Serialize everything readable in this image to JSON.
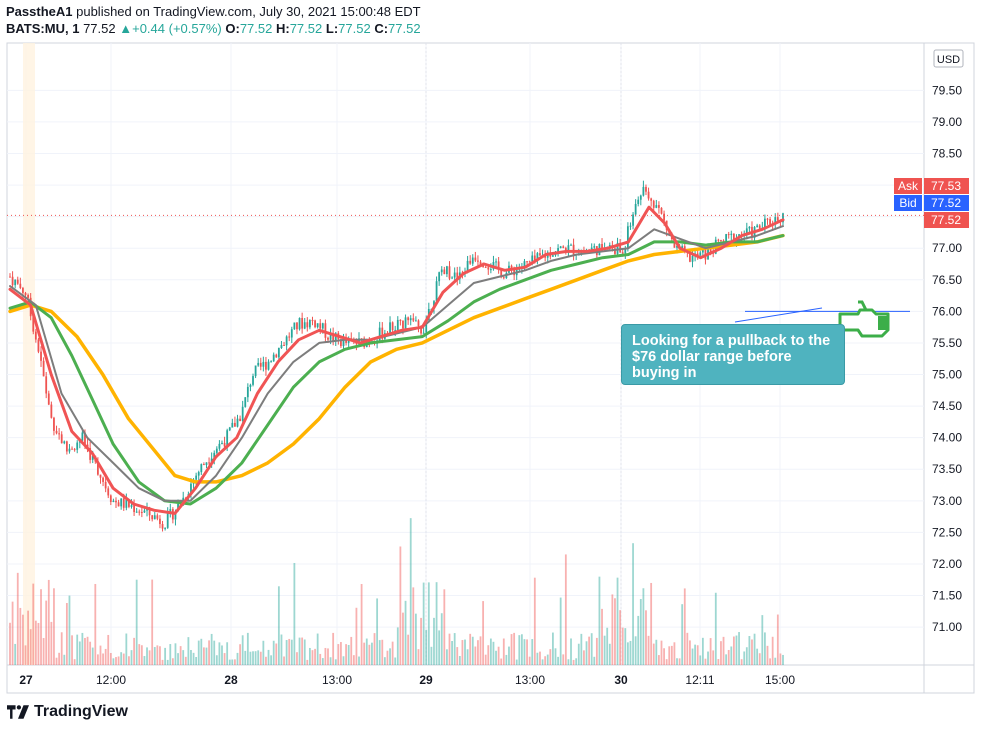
{
  "header": {
    "publisher": "PasstheA1",
    "published_text": "published on TradingView.com, July 30, 2021 15:00:48 EDT",
    "symbol": "BATS:MU, 1",
    "last_price": "77.52",
    "change": "+0.44 (+0.57%)",
    "o_label": "O:",
    "o_value": "77.52",
    "h_label": "H:",
    "h_value": "77.52",
    "l_label": "L:",
    "l_value": "77.52",
    "c_label": "C:",
    "c_value": "77.52"
  },
  "footer": {
    "brand": "TradingView"
  },
  "annotation": {
    "text": "Looking for a pullback to the $76 dollar range before buying in"
  },
  "colors": {
    "candle_up": "#26a69a",
    "candle_down": "#ef5350",
    "ma_fast": "#f05454",
    "ma_mid": "#7d7d7d",
    "ma_slow": "#4caf50",
    "ma_longest": "#ffb300",
    "annotation_bg": "#4fb3bf",
    "ask": "#ef5350",
    "bid": "#2962ff"
  },
  "price_labels": {
    "currency": "USD",
    "ask_label": "Ask",
    "ask_value": "77.53",
    "bid_label": "Bid",
    "bid_value": "77.52",
    "last_value": "77.52"
  },
  "chart_data": {
    "type": "line",
    "title": "BATS:MU, 1",
    "ylim": [
      70.4,
      80.25
    ],
    "y_ticks": [
      "79.50",
      "79.00",
      "78.50",
      "78.00",
      "77.50",
      "77.00",
      "76.50",
      "76.00",
      "75.50",
      "75.00",
      "74.50",
      "74.00",
      "73.50",
      "73.00",
      "72.50",
      "72.00",
      "71.50",
      "71.00"
    ],
    "x_ticks": [
      "27",
      "12:00",
      "28",
      "13:00",
      "29",
      "13:00",
      "30",
      "12:11",
      "15:00"
    ],
    "horizontal_line": 76.0,
    "price_series": [
      {
        "t": 0,
        "p": 76.55
      },
      {
        "t": 3,
        "p": 76.3
      },
      {
        "t": 5,
        "p": 75.6
      },
      {
        "t": 8,
        "p": 74.3
      },
      {
        "t": 11,
        "p": 73.8
      },
      {
        "t": 14,
        "p": 74.0
      },
      {
        "t": 17,
        "p": 73.5
      },
      {
        "t": 20,
        "p": 73.0
      },
      {
        "t": 24,
        "p": 72.9
      },
      {
        "t": 28,
        "p": 72.75
      },
      {
        "t": 30,
        "p": 72.65
      },
      {
        "t": 33,
        "p": 72.95
      },
      {
        "t": 36,
        "p": 73.4
      },
      {
        "t": 39,
        "p": 73.75
      },
      {
        "t": 42,
        "p": 74.0
      },
      {
        "t": 45,
        "p": 74.4
      },
      {
        "t": 47,
        "p": 75.0
      },
      {
        "t": 50,
        "p": 75.2
      },
      {
        "t": 53,
        "p": 75.5
      },
      {
        "t": 56,
        "p": 75.8
      },
      {
        "t": 59,
        "p": 75.85
      },
      {
        "t": 62,
        "p": 75.6
      },
      {
        "t": 65,
        "p": 75.5
      },
      {
        "t": 68,
        "p": 75.5
      },
      {
        "t": 71,
        "p": 75.6
      },
      {
        "t": 74,
        "p": 75.75
      },
      {
        "t": 77,
        "p": 75.85
      },
      {
        "t": 80,
        "p": 75.7
      },
      {
        "t": 82,
        "p": 76.2
      },
      {
        "t": 84,
        "p": 76.7
      },
      {
        "t": 87,
        "p": 76.5
      },
      {
        "t": 90,
        "p": 76.9
      },
      {
        "t": 93,
        "p": 76.75
      },
      {
        "t": 96,
        "p": 76.6
      },
      {
        "t": 99,
        "p": 76.7
      },
      {
        "t": 102,
        "p": 76.8
      },
      {
        "t": 105,
        "p": 76.95
      },
      {
        "t": 108,
        "p": 77.0
      },
      {
        "t": 111,
        "p": 76.95
      },
      {
        "t": 114,
        "p": 77.0
      },
      {
        "t": 117,
        "p": 77.0
      },
      {
        "t": 119,
        "p": 76.95
      },
      {
        "t": 121,
        "p": 77.6
      },
      {
        "t": 123,
        "p": 78.0
      },
      {
        "t": 126,
        "p": 77.6
      },
      {
        "t": 129,
        "p": 77.0
      },
      {
        "t": 132,
        "p": 76.85
      },
      {
        "t": 135,
        "p": 76.9
      },
      {
        "t": 138,
        "p": 77.1
      },
      {
        "t": 141,
        "p": 77.2
      },
      {
        "t": 144,
        "p": 77.25
      },
      {
        "t": 147,
        "p": 77.4
      },
      {
        "t": 150,
        "p": 77.52
      }
    ],
    "ma_fast": [
      {
        "t": 0,
        "p": 76.35
      },
      {
        "t": 4,
        "p": 76.1
      },
      {
        "t": 8,
        "p": 75.0
      },
      {
        "t": 12,
        "p": 74.1
      },
      {
        "t": 16,
        "p": 73.75
      },
      {
        "t": 20,
        "p": 73.2
      },
      {
        "t": 24,
        "p": 72.95
      },
      {
        "t": 28,
        "p": 72.85
      },
      {
        "t": 32,
        "p": 72.8
      },
      {
        "t": 36,
        "p": 73.2
      },
      {
        "t": 40,
        "p": 73.7
      },
      {
        "t": 44,
        "p": 74.0
      },
      {
        "t": 48,
        "p": 74.7
      },
      {
        "t": 52,
        "p": 75.2
      },
      {
        "t": 56,
        "p": 75.55
      },
      {
        "t": 60,
        "p": 75.7
      },
      {
        "t": 64,
        "p": 75.6
      },
      {
        "t": 68,
        "p": 75.5
      },
      {
        "t": 72,
        "p": 75.6
      },
      {
        "t": 76,
        "p": 75.7
      },
      {
        "t": 80,
        "p": 75.75
      },
      {
        "t": 84,
        "p": 76.3
      },
      {
        "t": 88,
        "p": 76.6
      },
      {
        "t": 92,
        "p": 76.75
      },
      {
        "t": 96,
        "p": 76.65
      },
      {
        "t": 100,
        "p": 76.7
      },
      {
        "t": 104,
        "p": 76.9
      },
      {
        "t": 108,
        "p": 76.95
      },
      {
        "t": 112,
        "p": 76.95
      },
      {
        "t": 116,
        "p": 77.0
      },
      {
        "t": 120,
        "p": 77.1
      },
      {
        "t": 124,
        "p": 77.65
      },
      {
        "t": 127,
        "p": 77.4
      },
      {
        "t": 130,
        "p": 77.0
      },
      {
        "t": 134,
        "p": 76.85
      },
      {
        "t": 138,
        "p": 77.0
      },
      {
        "t": 142,
        "p": 77.2
      },
      {
        "t": 146,
        "p": 77.3
      },
      {
        "t": 150,
        "p": 77.45
      }
    ],
    "ma_mid": [
      {
        "t": 0,
        "p": 76.4
      },
      {
        "t": 5,
        "p": 76.1
      },
      {
        "t": 10,
        "p": 74.7
      },
      {
        "t": 15,
        "p": 74.0
      },
      {
        "t": 20,
        "p": 73.6
      },
      {
        "t": 25,
        "p": 73.2
      },
      {
        "t": 30,
        "p": 73.0
      },
      {
        "t": 35,
        "p": 73.0
      },
      {
        "t": 40,
        "p": 73.4
      },
      {
        "t": 45,
        "p": 74.0
      },
      {
        "t": 50,
        "p": 74.7
      },
      {
        "t": 55,
        "p": 75.2
      },
      {
        "t": 60,
        "p": 75.5
      },
      {
        "t": 65,
        "p": 75.55
      },
      {
        "t": 70,
        "p": 75.55
      },
      {
        "t": 75,
        "p": 75.65
      },
      {
        "t": 80,
        "p": 75.75
      },
      {
        "t": 85,
        "p": 76.1
      },
      {
        "t": 90,
        "p": 76.45
      },
      {
        "t": 95,
        "p": 76.55
      },
      {
        "t": 100,
        "p": 76.65
      },
      {
        "t": 105,
        "p": 76.8
      },
      {
        "t": 110,
        "p": 76.9
      },
      {
        "t": 115,
        "p": 76.95
      },
      {
        "t": 120,
        "p": 77.0
      },
      {
        "t": 125,
        "p": 77.3
      },
      {
        "t": 130,
        "p": 77.15
      },
      {
        "t": 135,
        "p": 77.0
      },
      {
        "t": 140,
        "p": 77.1
      },
      {
        "t": 145,
        "p": 77.2
      },
      {
        "t": 150,
        "p": 77.35
      }
    ],
    "ma_slow": [
      {
        "t": 0,
        "p": 76.05
      },
      {
        "t": 4,
        "p": 76.15
      },
      {
        "t": 8,
        "p": 75.9
      },
      {
        "t": 12,
        "p": 75.3
      },
      {
        "t": 16,
        "p": 74.6
      },
      {
        "t": 20,
        "p": 73.9
      },
      {
        "t": 25,
        "p": 73.3
      },
      {
        "t": 30,
        "p": 73.0
      },
      {
        "t": 35,
        "p": 72.95
      },
      {
        "t": 40,
        "p": 73.2
      },
      {
        "t": 45,
        "p": 73.6
      },
      {
        "t": 50,
        "p": 74.2
      },
      {
        "t": 55,
        "p": 74.8
      },
      {
        "t": 60,
        "p": 75.2
      },
      {
        "t": 65,
        "p": 75.4
      },
      {
        "t": 70,
        "p": 75.5
      },
      {
        "t": 75,
        "p": 75.55
      },
      {
        "t": 80,
        "p": 75.6
      },
      {
        "t": 85,
        "p": 75.85
      },
      {
        "t": 90,
        "p": 76.15
      },
      {
        "t": 95,
        "p": 76.35
      },
      {
        "t": 100,
        "p": 76.5
      },
      {
        "t": 105,
        "p": 76.65
      },
      {
        "t": 110,
        "p": 76.75
      },
      {
        "t": 115,
        "p": 76.85
      },
      {
        "t": 120,
        "p": 76.9
      },
      {
        "t": 125,
        "p": 77.1
      },
      {
        "t": 130,
        "p": 77.1
      },
      {
        "t": 135,
        "p": 77.05
      },
      {
        "t": 140,
        "p": 77.1
      },
      {
        "t": 145,
        "p": 77.1
      },
      {
        "t": 150,
        "p": 77.2
      }
    ],
    "ma_longest": [
      {
        "t": 0,
        "p": 76.0
      },
      {
        "t": 4,
        "p": 76.1
      },
      {
        "t": 8,
        "p": 76.0
      },
      {
        "t": 13,
        "p": 75.6
      },
      {
        "t": 18,
        "p": 75.0
      },
      {
        "t": 23,
        "p": 74.3
      },
      {
        "t": 28,
        "p": 73.8
      },
      {
        "t": 32,
        "p": 73.4
      },
      {
        "t": 36,
        "p": 73.3
      },
      {
        "t": 40,
        "p": 73.3
      },
      {
        "t": 45,
        "p": 73.4
      },
      {
        "t": 50,
        "p": 73.6
      },
      {
        "t": 55,
        "p": 73.9
      },
      {
        "t": 60,
        "p": 74.3
      },
      {
        "t": 65,
        "p": 74.8
      },
      {
        "t": 70,
        "p": 75.2
      },
      {
        "t": 75,
        "p": 75.4
      },
      {
        "t": 80,
        "p": 75.5
      },
      {
        "t": 85,
        "p": 75.7
      },
      {
        "t": 90,
        "p": 75.9
      },
      {
        "t": 95,
        "p": 76.05
      },
      {
        "t": 100,
        "p": 76.2
      },
      {
        "t": 105,
        "p": 76.35
      },
      {
        "t": 110,
        "p": 76.5
      },
      {
        "t": 115,
        "p": 76.65
      },
      {
        "t": 120,
        "p": 76.8
      },
      {
        "t": 125,
        "p": 76.9
      },
      {
        "t": 130,
        "p": 76.95
      },
      {
        "t": 135,
        "p": 77.0
      },
      {
        "t": 140,
        "p": 77.05
      },
      {
        "t": 145,
        "p": 77.1
      },
      {
        "t": 150,
        "p": 77.2
      }
    ]
  }
}
